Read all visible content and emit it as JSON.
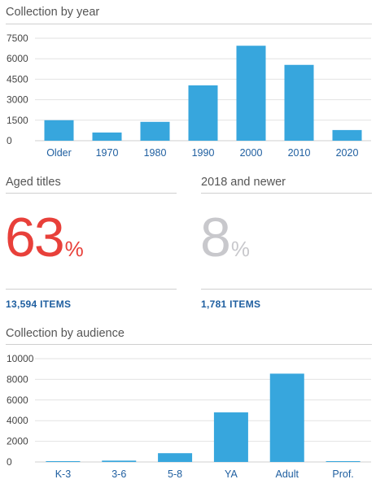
{
  "colors": {
    "bar": "#37a6dd",
    "axis_label": "#1f5fa0",
    "tick_label": "#444444",
    "grid": "#e2e2e2",
    "red": "#e8403a",
    "gray": "#c8c8cc"
  },
  "chart_data": [
    {
      "type": "bar",
      "title": "Collection by year",
      "categories": [
        "Older",
        "1970",
        "1980",
        "1990",
        "2000",
        "2010",
        "2020"
      ],
      "values": [
        1500,
        600,
        1380,
        4050,
        6950,
        5550,
        780
      ],
      "y_ticks": [
        0,
        1500,
        3000,
        4500,
        6000,
        7500
      ],
      "y_tick_labels": [
        "0",
        "1500",
        "3000",
        "4500",
        "6000",
        "7500"
      ],
      "ylim": [
        0,
        7500
      ],
      "grid": true
    },
    {
      "type": "bar",
      "title": "Collection by audience",
      "categories": [
        "K-3",
        "3-6",
        "5-8",
        "YA",
        "Adult",
        "Prof."
      ],
      "values": [
        30,
        130,
        850,
        4800,
        8550,
        30
      ],
      "y_ticks": [
        0,
        2000,
        4000,
        6000,
        8000,
        10000
      ],
      "y_tick_labels": [
        "0",
        "2000",
        "4000",
        "6000",
        "8000",
        "10000"
      ],
      "ylim": [
        0,
        10000
      ],
      "grid": true
    }
  ],
  "stats": {
    "aged": {
      "title": "Aged titles",
      "value": "63",
      "unit": "%",
      "items": "13,594 ITEMS"
    },
    "newer": {
      "title": "2018 and newer",
      "value": "8",
      "unit": "%",
      "items": "1,781 ITEMS"
    }
  }
}
